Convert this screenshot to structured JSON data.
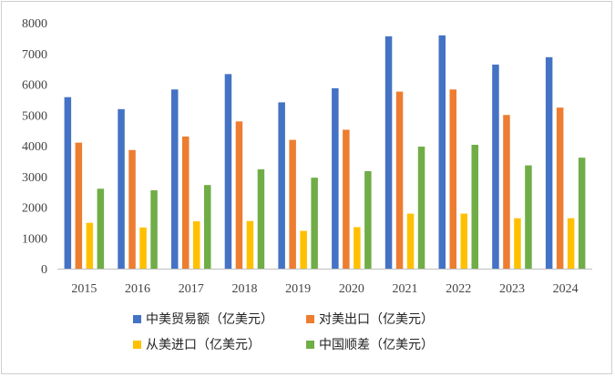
{
  "chart_data": {
    "type": "bar",
    "categories": [
      "2015",
      "2016",
      "2017",
      "2018",
      "2019",
      "2020",
      "2021",
      "2022",
      "2023",
      "2024"
    ],
    "series": [
      {
        "name": "中美贸易额（亿美元）",
        "color": "#4472C4",
        "values": [
          5580,
          5190,
          5830,
          6330,
          5410,
          5870,
          7560,
          7590,
          6640,
          6880
        ]
      },
      {
        "name": "对美出口（亿美元）",
        "color": "#ED7D31",
        "values": [
          4100,
          3860,
          4300,
          4790,
          4190,
          4520,
          5760,
          5830,
          5000,
          5240
        ]
      },
      {
        "name": "从美进口（亿美元）",
        "color": "#FFC000",
        "values": [
          1490,
          1340,
          1540,
          1550,
          1230,
          1350,
          1790,
          1790,
          1640,
          1640
        ]
      },
      {
        "name": "中国顺差（亿美元）",
        "color": "#70AD47",
        "values": [
          2600,
          2550,
          2720,
          3230,
          2960,
          3170,
          3970,
          4030,
          3360,
          3610
        ]
      }
    ],
    "yticks": [
      "0",
      "1000",
      "2000",
      "3000",
      "4000",
      "5000",
      "6000",
      "7000",
      "8000"
    ],
    "ylim": [
      0,
      8000
    ],
    "grid": false,
    "legend_position": "bottom",
    "title": "",
    "xlabel": "",
    "ylabel": ""
  }
}
